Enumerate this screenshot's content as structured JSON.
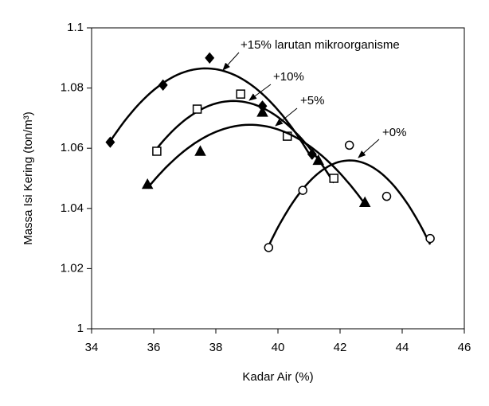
{
  "chart_data": {
    "type": "scatter",
    "x_label": "Kadar Air (%)",
    "y_label": "Massa Isi Kering (ton/m³)",
    "xlim": [
      34,
      46
    ],
    "xticks": [
      34,
      36,
      38,
      40,
      42,
      44,
      46
    ],
    "ylim": [
      1,
      1.1
    ],
    "yticks": [
      1,
      1.02,
      1.04,
      1.06,
      1.08,
      1.1
    ],
    "trendline": "quadratic",
    "series": [
      {
        "name": "+15% larutan mikroorganisme",
        "color": "#000000",
        "marker": "diamond",
        "filled": true,
        "x": [
          34.6,
          36.3,
          37.8,
          39.5,
          41.1
        ],
        "values": [
          1.062,
          1.081,
          1.09,
          1.074,
          1.058
        ]
      },
      {
        "name": "+10%",
        "color": "#000000",
        "marker": "square",
        "filled": false,
        "x": [
          36.1,
          37.4,
          38.8,
          40.3,
          41.8
        ],
        "values": [
          1.059,
          1.073,
          1.078,
          1.064,
          1.05
        ]
      },
      {
        "name": "+5%",
        "color": "#000000",
        "marker": "triangle",
        "filled": true,
        "x": [
          35.8,
          37.5,
          39.5,
          41.3,
          42.8
        ],
        "values": [
          1.048,
          1.059,
          1.072,
          1.056,
          1.042
        ]
      },
      {
        "name": "+0%",
        "color": "#000000",
        "marker": "circle",
        "filled": false,
        "x": [
          39.7,
          40.8,
          42.3,
          43.5,
          44.9
        ],
        "values": [
          1.027,
          1.046,
          1.061,
          1.044,
          1.03
        ]
      }
    ]
  }
}
